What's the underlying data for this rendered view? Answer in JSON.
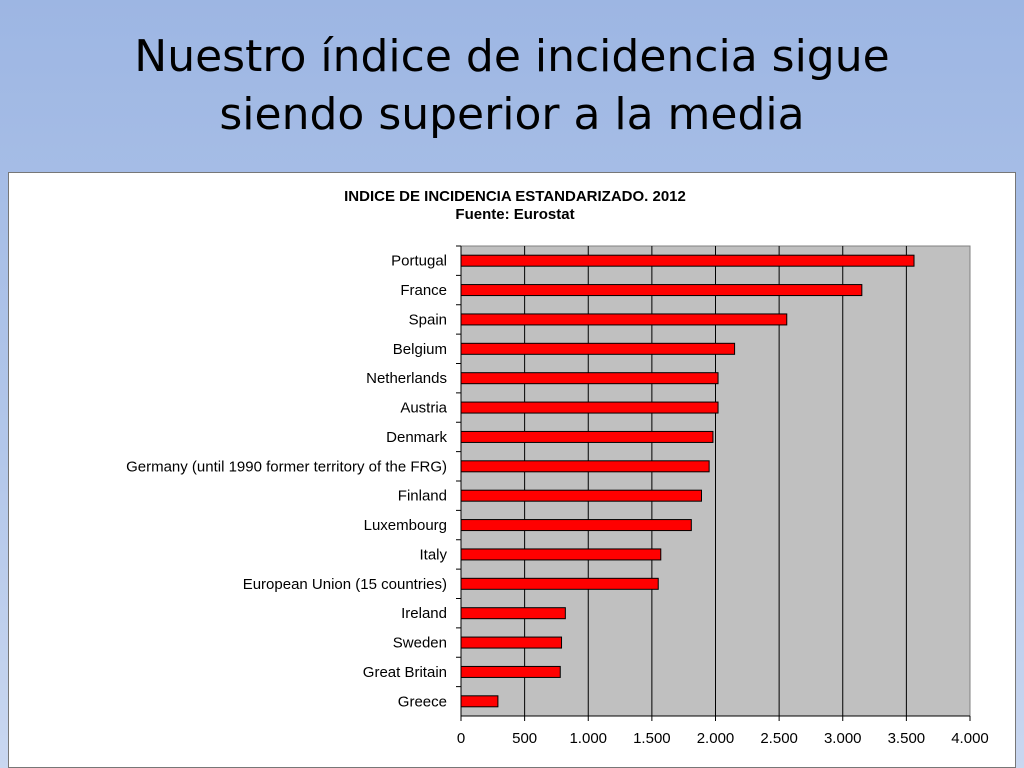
{
  "slide": {
    "title_line1": "Nuestro índice de incidencia sigue",
    "title_line2": "siendo superior a la media"
  },
  "chart_data": {
    "type": "bar",
    "orientation": "horizontal",
    "title": "INDICE DE INCIDENCIA ESTANDARIZADO. 2012",
    "subtitle": "Fuente: Eurostat",
    "categories": [
      "Portugal",
      "France",
      "Spain",
      "Belgium",
      "Netherlands",
      "Austria",
      "Denmark",
      "Germany (until 1990 former territory of the FRG)",
      "Finland",
      "Luxembourg",
      "Italy",
      "European Union (15 countries)",
      "Ireland",
      "Sweden",
      "Great Britain",
      "Greece"
    ],
    "values": [
      3560,
      3150,
      2560,
      2150,
      2020,
      2020,
      1980,
      1950,
      1890,
      1810,
      1570,
      1550,
      820,
      790,
      780,
      290
    ],
    "xlim": [
      0,
      4000
    ],
    "xticks": [
      0,
      500,
      1000,
      1500,
      2000,
      2500,
      3000,
      3500,
      4000
    ],
    "xtick_labels": [
      "0",
      "500",
      "1.000",
      "1.500",
      "2.000",
      "2.500",
      "3.000",
      "3.500",
      "4.000"
    ],
    "grid": "vertical",
    "legend": "none",
    "colors": {
      "bar": "#ff0000",
      "bar_edge": "#000000",
      "plot_background": "#c0c0c0",
      "gridline": "#000000"
    }
  }
}
